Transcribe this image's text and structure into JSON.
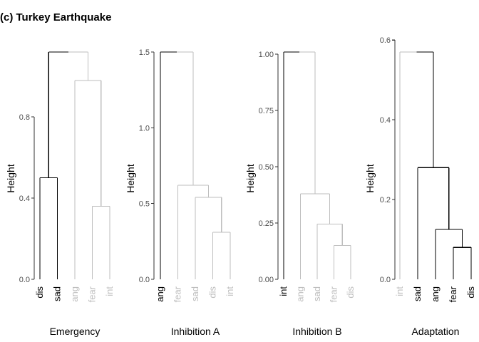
{
  "title": "(c) Turkey Earthquake",
  "colors": {
    "highlight": "#000000",
    "muted": "#bebebe",
    "axis": "#333333",
    "tick_text": "#4d4d4d"
  },
  "chart_data": [
    {
      "type": "dendrogram",
      "xlabel": "Emergency",
      "ylabel": "Height",
      "yticks": [
        0.0,
        0.4,
        0.8
      ],
      "tick_labels": [
        "0.0",
        "0.4",
        "0.8"
      ],
      "ylim": [
        0,
        1.12
      ],
      "leaves": [
        "dis",
        "sad",
        "ang",
        "fear",
        "int"
      ],
      "leaf_highlight": [
        true,
        true,
        false,
        false,
        false
      ],
      "merges": [
        {
          "left": 0,
          "right": 1,
          "height": 0.5,
          "highlight": true
        },
        {
          "left": 3,
          "right": 4,
          "height": 0.36,
          "highlight": false
        },
        {
          "left": 2,
          "right": -2,
          "height": 0.98,
          "highlight": false
        },
        {
          "left": -1,
          "right": -3,
          "height": 1.12,
          "highlight": "split"
        }
      ]
    },
    {
      "type": "dendrogram",
      "xlabel": "Inhibition A",
      "ylabel": "Height",
      "yticks": [
        0.0,
        0.5,
        1.0,
        1.5
      ],
      "tick_labels": [
        "0.0",
        "0.5",
        "1.0",
        "1.5"
      ],
      "ylim": [
        0,
        1.5
      ],
      "leaves": [
        "ang",
        "fear",
        "sad",
        "dis",
        "int"
      ],
      "leaf_highlight": [
        true,
        false,
        false,
        false,
        false
      ],
      "merges": [
        {
          "left": 3,
          "right": 4,
          "height": 0.31,
          "highlight": false
        },
        {
          "left": 2,
          "right": -1,
          "height": 0.54,
          "highlight": false
        },
        {
          "left": 1,
          "right": -2,
          "height": 0.62,
          "highlight": false
        },
        {
          "left": 0,
          "right": -3,
          "height": 1.5,
          "highlight": "split"
        }
      ]
    },
    {
      "type": "dendrogram",
      "xlabel": "Inhibition B",
      "ylabel": "Height",
      "yticks": [
        0.0,
        0.25,
        0.5,
        0.75,
        1.0
      ],
      "tick_labels": [
        "0.00",
        "0.25",
        "0.50",
        "0.75",
        "1.00"
      ],
      "ylim": [
        0,
        1.01
      ],
      "leaves": [
        "int",
        "ang",
        "sad",
        "fear",
        "dis"
      ],
      "leaf_highlight": [
        true,
        false,
        false,
        false,
        false
      ],
      "merges": [
        {
          "left": 3,
          "right": 4,
          "height": 0.15,
          "highlight": false
        },
        {
          "left": 2,
          "right": -1,
          "height": 0.245,
          "highlight": false
        },
        {
          "left": 1,
          "right": -2,
          "height": 0.38,
          "highlight": false
        },
        {
          "left": 0,
          "right": -3,
          "height": 1.01,
          "highlight": "split"
        }
      ]
    },
    {
      "type": "dendrogram",
      "xlabel": "Adaptation",
      "ylabel": "Height",
      "yticks": [
        0.0,
        0.2,
        0.4,
        0.6
      ],
      "tick_labels": [
        "0.0",
        "0.2",
        "0.4",
        "0.6"
      ],
      "ylim": [
        0,
        0.57
      ],
      "leaves": [
        "int",
        "sad",
        "ang",
        "fear",
        "dis"
      ],
      "leaf_highlight": [
        false,
        true,
        true,
        true,
        true
      ],
      "merges": [
        {
          "left": 3,
          "right": 4,
          "height": 0.08,
          "highlight": true
        },
        {
          "left": 2,
          "right": -1,
          "height": 0.125,
          "highlight": true
        },
        {
          "left": 1,
          "right": -2,
          "height": 0.28,
          "highlight": true
        },
        {
          "left": 0,
          "right": -3,
          "height": 0.57,
          "highlight": "split-right"
        }
      ]
    }
  ]
}
